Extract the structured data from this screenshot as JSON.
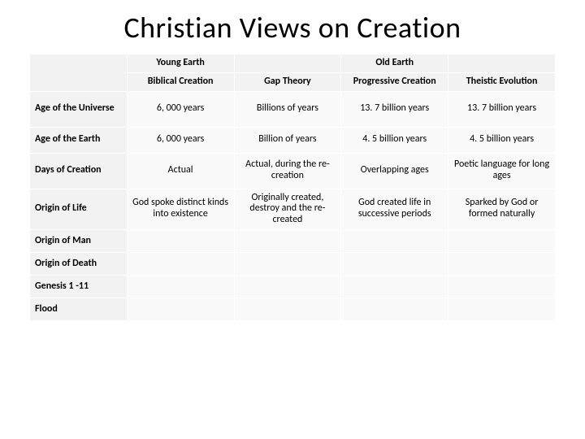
{
  "title": "Christian Views on Creation",
  "super_headers": {
    "young": "Young Earth",
    "old": "Old Earth"
  },
  "column_headers": {
    "c1": "Biblical Creation",
    "c2": "Gap Theory",
    "c3": "Progressive Creation",
    "c4": "Theistic Evolution"
  },
  "rows": [
    {
      "label": "Age of the Universe",
      "cells": [
        "6, 000 years",
        "Billions of years",
        "13. 7 billion years",
        "13. 7 billion years"
      ]
    },
    {
      "label": "Age of the Earth",
      "cells": [
        "6, 000 years",
        "Billion of years",
        "4. 5 billion years",
        "4. 5 billion years"
      ]
    },
    {
      "label": "Days of Creation",
      "cells": [
        "Actual",
        "Actual, during the re-creation",
        "Overlapping ages",
        "Poetic language for long ages"
      ]
    },
    {
      "label": "Origin of Life",
      "cells": [
        "God spoke distinct kinds into existence",
        "Originally created, destroy and the re-created",
        "God created life in successive periods",
        "Sparked by God or formed naturally"
      ]
    },
    {
      "label": "Origin of Man",
      "cells": [
        "",
        "",
        "",
        ""
      ]
    },
    {
      "label": "Origin of Death",
      "cells": [
        "",
        "",
        "",
        ""
      ]
    },
    {
      "label": "Genesis 1 -11",
      "cells": [
        "",
        "",
        "",
        ""
      ]
    },
    {
      "label": "Flood",
      "cells": [
        "",
        "",
        "",
        ""
      ]
    }
  ],
  "colors": {
    "header_bg": "#f2f2f2",
    "cell_bg": "#f9f9f9",
    "border": "#ffffff",
    "text": "#000000",
    "title": "#000000"
  }
}
